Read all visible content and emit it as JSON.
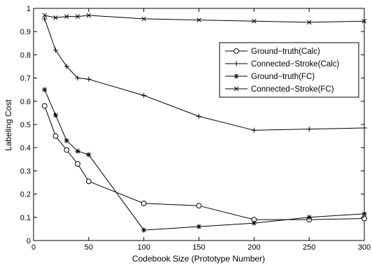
{
  "chart_data": {
    "type": "line",
    "xlabel": "Codebook Size (Prototype Number)",
    "ylabel": "Labeling Cost",
    "xlim": [
      0,
      300
    ],
    "ylim": [
      0,
      1
    ],
    "xticks": [
      0,
      50,
      100,
      150,
      200,
      250,
      300
    ],
    "xtick_labels": [
      "0",
      "50",
      "100",
      "150",
      "200",
      "250",
      "300"
    ],
    "yticks": [
      0,
      0.1,
      0.2,
      0.3,
      0.4,
      0.5,
      0.6,
      0.7,
      0.8,
      0.9,
      1
    ],
    "ytick_labels": [
      "0",
      "0.1",
      "0.2",
      "0.3",
      "0.4",
      "0.5",
      "0.6",
      "0.7",
      "0.8",
      "0.9",
      "1"
    ],
    "grid": false,
    "legend_position": "top-right",
    "series": [
      {
        "name": "Ground−truth(Calc)",
        "marker": "circle",
        "color": "#000000",
        "x": [
          10,
          20,
          30,
          40,
          50,
          100,
          150,
          200,
          250,
          300
        ],
        "y": [
          0.58,
          0.45,
          0.39,
          0.33,
          0.255,
          0.16,
          0.15,
          0.09,
          0.09,
          0.095
        ]
      },
      {
        "name": "Connected−Stroke(Calc)",
        "marker": "plus",
        "color": "#000000",
        "x": [
          10,
          20,
          30,
          40,
          50,
          100,
          150,
          200,
          250,
          300
        ],
        "y": [
          0.955,
          0.82,
          0.75,
          0.7,
          0.695,
          0.625,
          0.535,
          0.475,
          0.48,
          0.485
        ]
      },
      {
        "name": "Ground−truth(FC)",
        "marker": "star",
        "color": "#000000",
        "x": [
          10,
          20,
          30,
          40,
          50,
          100,
          150,
          200,
          250,
          300
        ],
        "y": [
          0.65,
          0.54,
          0.43,
          0.385,
          0.37,
          0.045,
          0.06,
          0.075,
          0.1,
          0.115
        ]
      },
      {
        "name": "Connected−Stroke(FC)",
        "marker": "x",
        "color": "#000000",
        "x": [
          10,
          20,
          30,
          40,
          50,
          100,
          150,
          200,
          250,
          300
        ],
        "y": [
          0.97,
          0.96,
          0.965,
          0.965,
          0.97,
          0.955,
          0.95,
          0.945,
          0.94,
          0.945
        ]
      }
    ]
  }
}
